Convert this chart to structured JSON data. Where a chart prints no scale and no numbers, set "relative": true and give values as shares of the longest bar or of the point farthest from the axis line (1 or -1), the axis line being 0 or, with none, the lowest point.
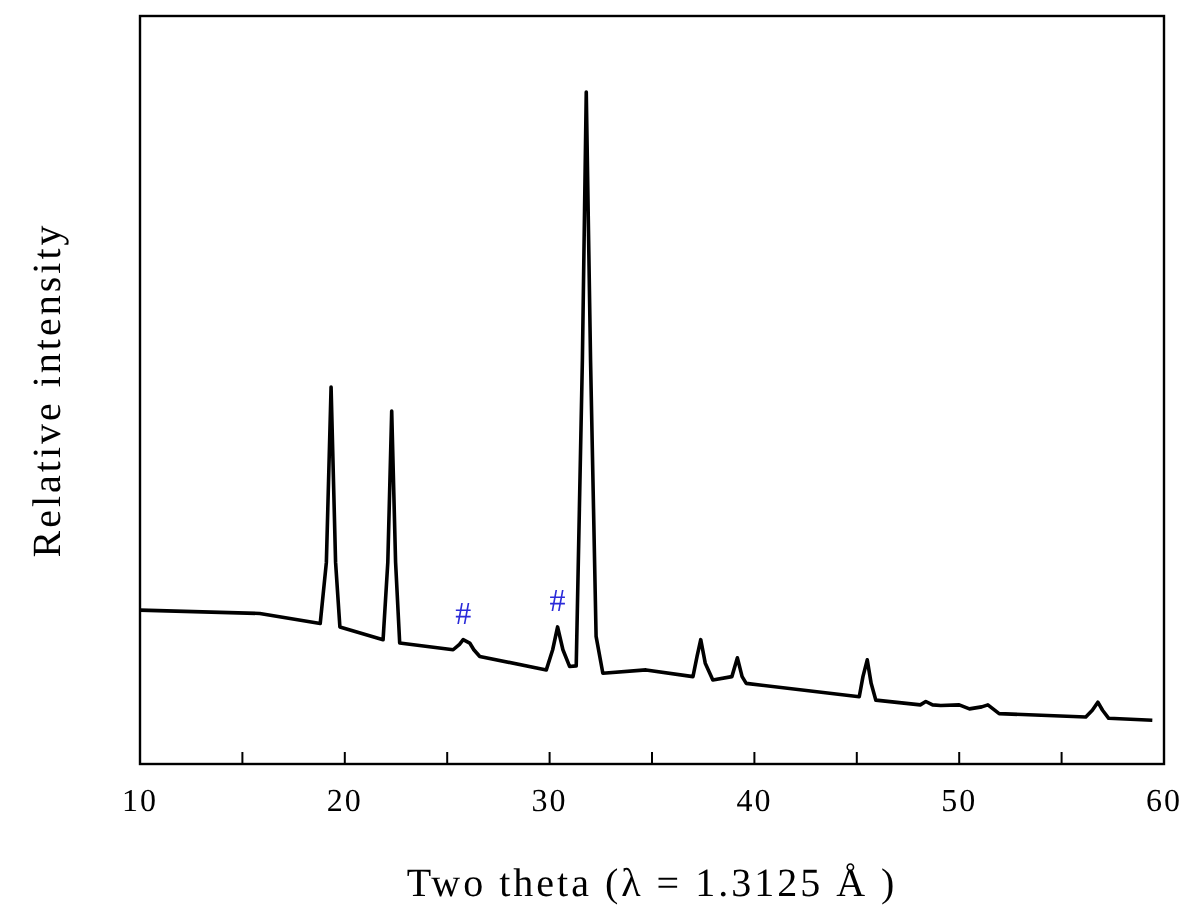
{
  "chart_data": {
    "type": "line",
    "relative": true,
    "xlabel": "Two theta (λ = 1.3125 Å )",
    "ylabel": "Relative intensity",
    "xlim": [
      10,
      60
    ],
    "xticks": [
      10,
      {
        "value": 15,
        "label": null
      },
      20,
      {
        "value": 25,
        "label": null
      },
      30,
      {
        "value": 35,
        "label": null
      },
      40,
      {
        "value": 45,
        "label": null
      },
      50,
      {
        "value": 55,
        "label": null
      },
      60
    ],
    "series": [
      {
        "color": "#000000",
        "x": [
          10,
          15.85,
          18.8,
          19.1,
          19.33,
          19.55,
          19.76,
          21.87,
          22.1,
          22.29,
          22.48,
          22.68,
          25.29,
          25.6,
          25.78,
          26.1,
          26.3,
          26.59,
          29.84,
          30.15,
          30.39,
          30.65,
          30.98,
          31.3,
          31.6,
          31.79,
          32.0,
          32.27,
          32.6,
          34.71,
          37.0,
          37.2,
          37.38,
          37.6,
          37.97,
          38.9,
          39.17,
          39.4,
          39.6,
          45.12,
          45.3,
          45.51,
          45.7,
          45.93,
          48.1,
          48.37,
          48.7,
          49.1,
          50.0,
          50.5,
          51.1,
          51.4,
          51.95,
          56.18,
          56.5,
          56.77,
          57.0,
          57.3,
          59.43
        ],
        "values": [
          0.229,
          0.224,
          0.209,
          0.3,
          0.561,
          0.3,
          0.204,
          0.185,
          0.3,
          0.525,
          0.3,
          0.18,
          0.17,
          0.178,
          0.185,
          0.18,
          0.17,
          0.16,
          0.14,
          0.17,
          0.204,
          0.17,
          0.145,
          0.146,
          0.6,
          1.0,
          0.6,
          0.19,
          0.135,
          0.14,
          0.13,
          0.16,
          0.185,
          0.15,
          0.125,
          0.13,
          0.158,
          0.13,
          0.12,
          0.1,
          0.13,
          0.155,
          0.12,
          0.095,
          0.088,
          0.093,
          0.088,
          0.087,
          0.088,
          0.082,
          0.085,
          0.088,
          0.075,
          0.07,
          0.08,
          0.092,
          0.08,
          0.068,
          0.065
        ]
      }
    ],
    "annotations": [
      {
        "text": "#",
        "x": 25.78,
        "y": 0.185
      },
      {
        "text": "#",
        "x": 30.39,
        "y": 0.204
      }
    ]
  }
}
